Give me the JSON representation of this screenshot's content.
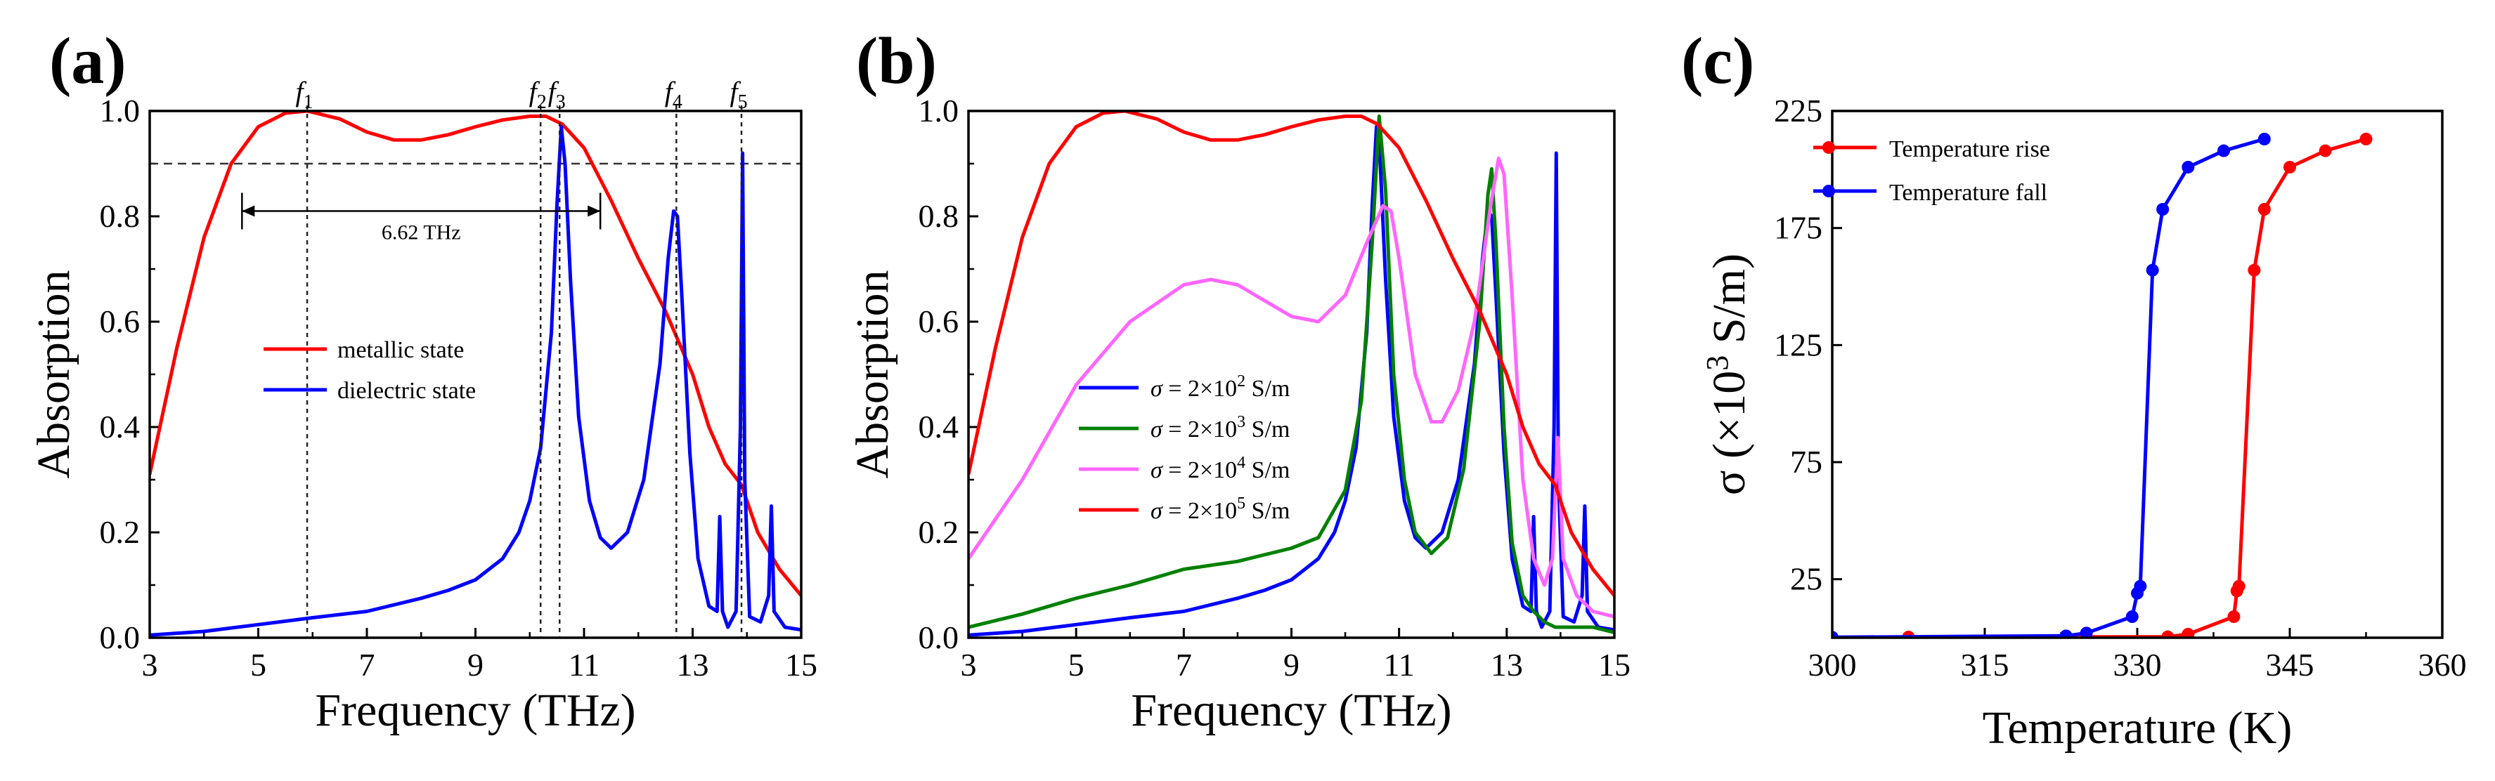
{
  "chart_data": [
    {
      "panel": "(a)",
      "type": "line",
      "xlabel": "Frequency (THz)",
      "ylabel": "Absorption",
      "xlim": [
        3,
        15
      ],
      "ylim": [
        0,
        1.0
      ],
      "xticks": [
        "3",
        "5",
        "7",
        "9",
        "11",
        "13",
        "15"
      ],
      "yticks": [
        "0.0",
        "0.2",
        "0.4",
        "0.6",
        "0.8",
        "1.0"
      ],
      "reference_line_y": 0.9,
      "marker_lines": [
        {
          "label": "f",
          "sub": "1",
          "x": 5.9
        },
        {
          "label": "f",
          "sub": "2",
          "x": 10.2
        },
        {
          "label": "f",
          "sub": "3",
          "x": 10.55
        },
        {
          "label": "f",
          "sub": "4",
          "x": 12.7
        },
        {
          "label": "f",
          "sub": "5",
          "x": 13.9
        }
      ],
      "bandwidth_annotation": {
        "label": "6.62 THz",
        "x_start": 4.7,
        "x_end": 11.3,
        "y": 0.81
      },
      "legend_position": "center",
      "series": [
        {
          "name": "metallic state",
          "color": "#ff0000",
          "x": [
            3.0,
            3.5,
            4.0,
            4.5,
            5.0,
            5.5,
            5.9,
            6.5,
            7.0,
            7.5,
            8.0,
            8.5,
            9.0,
            9.5,
            10.0,
            10.3,
            10.6,
            11.0,
            11.5,
            12.0,
            12.5,
            13.0,
            13.3,
            13.6,
            13.9,
            14.2,
            14.6,
            15.0
          ],
          "y": [
            0.31,
            0.55,
            0.76,
            0.9,
            0.97,
            0.996,
            1.0,
            0.985,
            0.96,
            0.945,
            0.945,
            0.955,
            0.97,
            0.983,
            0.99,
            0.99,
            0.975,
            0.93,
            0.83,
            0.72,
            0.62,
            0.5,
            0.4,
            0.33,
            0.29,
            0.2,
            0.13,
            0.08
          ]
        },
        {
          "name": "dielectric state",
          "color": "#0000ff",
          "x": [
            3.0,
            4.0,
            5.0,
            6.0,
            7.0,
            8.0,
            8.5,
            9.0,
            9.5,
            9.8,
            10.0,
            10.2,
            10.4,
            10.5,
            10.58,
            10.65,
            10.75,
            10.9,
            11.1,
            11.3,
            11.5,
            11.8,
            12.1,
            12.4,
            12.55,
            12.65,
            12.72,
            12.8,
            12.95,
            13.1,
            13.3,
            13.45,
            13.5,
            13.55,
            13.65,
            13.8,
            13.88,
            13.92,
            13.96,
            14.05,
            14.25,
            14.4,
            14.45,
            14.5,
            14.7,
            15.0
          ],
          "y": [
            0.005,
            0.012,
            0.025,
            0.038,
            0.05,
            0.075,
            0.09,
            0.11,
            0.15,
            0.2,
            0.26,
            0.36,
            0.58,
            0.82,
            0.97,
            0.9,
            0.68,
            0.42,
            0.26,
            0.19,
            0.17,
            0.2,
            0.3,
            0.52,
            0.72,
            0.81,
            0.8,
            0.65,
            0.35,
            0.15,
            0.06,
            0.05,
            0.23,
            0.05,
            0.02,
            0.05,
            0.4,
            0.92,
            0.3,
            0.04,
            0.03,
            0.08,
            0.25,
            0.05,
            0.02,
            0.015
          ]
        }
      ]
    },
    {
      "panel": "(b)",
      "type": "line",
      "xlabel": "Frequency (THz)",
      "ylabel": "Absorption",
      "xlim": [
        3,
        15
      ],
      "ylim": [
        0,
        1.0
      ],
      "xticks": [
        "3",
        "5",
        "7",
        "9",
        "11",
        "13",
        "15"
      ],
      "yticks": [
        "0.0",
        "0.2",
        "0.4",
        "0.6",
        "0.8",
        "1.0"
      ],
      "legend_position": "center-left",
      "series": [
        {
          "name": "σ = 2×10² S/m",
          "legend_prefix": "σ",
          "legend_base": " = 2×10",
          "legend_exp": "2",
          "legend_unit": " S/m",
          "color": "#0000ff",
          "x": [
            3.0,
            4.0,
            5.0,
            6.0,
            7.0,
            8.0,
            8.5,
            9.0,
            9.5,
            9.8,
            10.0,
            10.2,
            10.4,
            10.5,
            10.58,
            10.65,
            10.75,
            10.9,
            11.1,
            11.3,
            11.5,
            11.8,
            12.1,
            12.4,
            12.55,
            12.65,
            12.72,
            12.8,
            12.95,
            13.1,
            13.3,
            13.45,
            13.5,
            13.55,
            13.65,
            13.8,
            13.88,
            13.92,
            13.96,
            14.05,
            14.25,
            14.4,
            14.45,
            14.5,
            14.7,
            15.0
          ],
          "y": [
            0.005,
            0.012,
            0.025,
            0.038,
            0.05,
            0.075,
            0.09,
            0.11,
            0.15,
            0.2,
            0.26,
            0.36,
            0.58,
            0.82,
            0.97,
            0.9,
            0.68,
            0.42,
            0.26,
            0.19,
            0.17,
            0.2,
            0.3,
            0.52,
            0.72,
            0.81,
            0.8,
            0.65,
            0.35,
            0.15,
            0.06,
            0.05,
            0.23,
            0.05,
            0.02,
            0.05,
            0.4,
            0.92,
            0.3,
            0.04,
            0.03,
            0.08,
            0.25,
            0.05,
            0.02,
            0.015
          ]
        },
        {
          "name": "σ = 2×10³ S/m",
          "legend_prefix": "σ",
          "legend_base": " = 2×10",
          "legend_exp": "3",
          "legend_unit": " S/m",
          "color": "#008000",
          "x": [
            3.0,
            4.0,
            5.0,
            6.0,
            7.0,
            8.0,
            9.0,
            9.5,
            10.0,
            10.3,
            10.5,
            10.63,
            10.75,
            10.9,
            11.1,
            11.3,
            11.6,
            11.9,
            12.2,
            12.5,
            12.65,
            12.72,
            12.8,
            12.95,
            13.1,
            13.3,
            13.5,
            13.7,
            13.9,
            14.1,
            14.3,
            14.45,
            14.6,
            15.0
          ],
          "y": [
            0.02,
            0.045,
            0.075,
            0.1,
            0.13,
            0.145,
            0.17,
            0.19,
            0.28,
            0.45,
            0.75,
            0.99,
            0.85,
            0.5,
            0.3,
            0.2,
            0.16,
            0.19,
            0.32,
            0.6,
            0.84,
            0.89,
            0.75,
            0.4,
            0.18,
            0.08,
            0.05,
            0.03,
            0.02,
            0.02,
            0.02,
            0.02,
            0.02,
            0.01
          ]
        },
        {
          "name": "σ = 2×10⁴ S/m",
          "legend_prefix": "σ",
          "legend_base": " = 2×10",
          "legend_exp": "4",
          "legend_unit": " S/m",
          "color": "#ff66ff",
          "x": [
            3.0,
            4.0,
            5.0,
            6.0,
            7.0,
            7.5,
            8.0,
            9.0,
            9.5,
            10.0,
            10.4,
            10.7,
            10.85,
            11.0,
            11.3,
            11.6,
            11.8,
            12.1,
            12.4,
            12.7,
            12.85,
            12.95,
            13.1,
            13.3,
            13.5,
            13.7,
            13.85,
            13.95,
            14.05,
            14.3,
            14.6,
            15.0
          ],
          "y": [
            0.15,
            0.3,
            0.48,
            0.6,
            0.67,
            0.68,
            0.67,
            0.61,
            0.6,
            0.65,
            0.75,
            0.82,
            0.81,
            0.72,
            0.5,
            0.41,
            0.41,
            0.47,
            0.6,
            0.82,
            0.91,
            0.88,
            0.65,
            0.3,
            0.15,
            0.1,
            0.15,
            0.38,
            0.15,
            0.08,
            0.05,
            0.04
          ]
        },
        {
          "name": "σ = 2×10⁵ S/m",
          "legend_prefix": "σ",
          "legend_base": " = 2×10",
          "legend_exp": "5",
          "legend_unit": " S/m",
          "color": "#ff0000",
          "x": [
            3.0,
            3.5,
            4.0,
            4.5,
            5.0,
            5.5,
            5.9,
            6.5,
            7.0,
            7.5,
            8.0,
            8.5,
            9.0,
            9.5,
            10.0,
            10.3,
            10.6,
            11.0,
            11.5,
            12.0,
            12.5,
            13.0,
            13.3,
            13.6,
            13.9,
            14.2,
            14.6,
            15.0
          ],
          "y": [
            0.31,
            0.55,
            0.76,
            0.9,
            0.97,
            0.996,
            1.0,
            0.985,
            0.96,
            0.945,
            0.945,
            0.955,
            0.97,
            0.983,
            0.99,
            0.99,
            0.975,
            0.93,
            0.83,
            0.72,
            0.62,
            0.5,
            0.4,
            0.33,
            0.29,
            0.2,
            0.13,
            0.08
          ]
        }
      ]
    },
    {
      "panel": "(c)",
      "type": "line",
      "xlabel": "Temperature (K)",
      "ylabel": "σ (×10³ S/m)",
      "ylabel_parts": {
        "pre": "σ (×10",
        "exp": "3",
        "post": " S/m)"
      },
      "xlim": [
        300,
        360
      ],
      "ylim": [
        0,
        225
      ],
      "xticks": [
        "300",
        "315",
        "330",
        "345",
        "360"
      ],
      "yticks": [
        "25",
        "75",
        "125",
        "175",
        "225"
      ],
      "markers": true,
      "legend_position": "top-left",
      "series": [
        {
          "name": "Temperature rise",
          "color": "#ff0000",
          "x": [
            307.5,
            333.0,
            335.0,
            339.5,
            339.8,
            340.0,
            341.5,
            342.5,
            345.0,
            348.5,
            352.5
          ],
          "y": [
            0.3,
            0.4,
            1.5,
            9.0,
            20.0,
            22.0,
            157.0,
            183.0,
            201.0,
            208.0,
            213.0
          ],
          "line_x": [
            307.5,
            333.0,
            335.0,
            339.5,
            339.8,
            340.0,
            341.5,
            342.5,
            345.0,
            348.5,
            352.5
          ],
          "line_y": [
            0.3,
            0.4,
            1.5,
            9.0,
            20.0,
            22.0,
            157.0,
            183.0,
            201.0,
            208.0,
            213.0
          ]
        },
        {
          "name": "Temperature fall",
          "color": "#0000ff",
          "x": [
            300.0,
            323.0,
            325.0,
            329.5,
            330.0,
            330.3,
            331.5,
            332.5,
            335.0,
            338.5,
            342.5
          ],
          "y": [
            0.2,
            0.8,
            2.0,
            9.0,
            19.0,
            22.0,
            157.0,
            183.0,
            201.0,
            208.0,
            213.0
          ]
        }
      ]
    }
  ]
}
